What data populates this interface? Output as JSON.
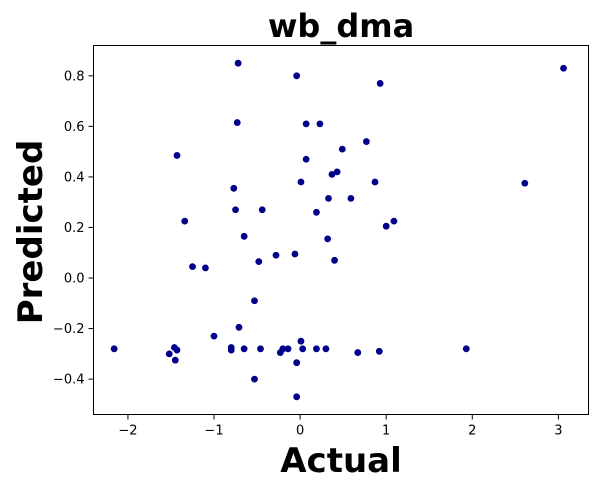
{
  "chart_data": {
    "type": "scatter",
    "title": "wb_dma",
    "xlabel": "Actual",
    "ylabel": "Predicted",
    "xlim": [
      -2.4,
      3.35
    ],
    "ylim": [
      -0.54,
      0.92
    ],
    "xticks": [
      -2,
      -1,
      0,
      1,
      2,
      3
    ],
    "xtick_labels": [
      "−2",
      "−1",
      "0",
      "1",
      "2",
      "3"
    ],
    "yticks": [
      -0.4,
      -0.2,
      0.0,
      0.2,
      0.4,
      0.6,
      0.8
    ],
    "ytick_labels": [
      "−0.4",
      "−0.2",
      "0.0",
      "0.2",
      "0.4",
      "0.6",
      "0.8"
    ],
    "grid": false,
    "marker_color": "#00008b",
    "points": [
      {
        "x": 3.06,
        "y": 0.83
      },
      {
        "x": 2.61,
        "y": 0.375
      },
      {
        "x": 1.93,
        "y": -0.28
      },
      {
        "x": 1.09,
        "y": 0.225
      },
      {
        "x": 1.0,
        "y": 0.205
      },
      {
        "x": 0.93,
        "y": 0.77
      },
      {
        "x": 0.92,
        "y": -0.29
      },
      {
        "x": 0.87,
        "y": 0.38
      },
      {
        "x": 0.77,
        "y": 0.54
      },
      {
        "x": 0.67,
        "y": -0.295
      },
      {
        "x": 0.59,
        "y": 0.315
      },
      {
        "x": 0.49,
        "y": 0.51
      },
      {
        "x": 0.43,
        "y": 0.42
      },
      {
        "x": 0.4,
        "y": 0.07
      },
      {
        "x": 0.37,
        "y": 0.41
      },
      {
        "x": 0.33,
        "y": 0.315
      },
      {
        "x": 0.32,
        "y": 0.155
      },
      {
        "x": 0.3,
        "y": -0.28
      },
      {
        "x": 0.23,
        "y": 0.61
      },
      {
        "x": 0.19,
        "y": -0.28
      },
      {
        "x": 0.19,
        "y": 0.26
      },
      {
        "x": 0.07,
        "y": 0.47
      },
      {
        "x": 0.07,
        "y": 0.61
      },
      {
        "x": 0.03,
        "y": -0.28
      },
      {
        "x": 0.01,
        "y": 0.38
      },
      {
        "x": 0.01,
        "y": -0.25
      },
      {
        "x": -0.04,
        "y": 0.8
      },
      {
        "x": -0.04,
        "y": -0.335
      },
      {
        "x": -0.04,
        "y": -0.47
      },
      {
        "x": -0.06,
        "y": 0.095
      },
      {
        "x": -0.14,
        "y": -0.28
      },
      {
        "x": -0.2,
        "y": -0.28
      },
      {
        "x": -0.23,
        "y": -0.295
      },
      {
        "x": -0.28,
        "y": 0.09
      },
      {
        "x": -0.44,
        "y": 0.27
      },
      {
        "x": -0.46,
        "y": -0.28
      },
      {
        "x": -0.48,
        "y": 0.065
      },
      {
        "x": -0.53,
        "y": -0.09
      },
      {
        "x": -0.53,
        "y": -0.4
      },
      {
        "x": -0.65,
        "y": 0.165
      },
      {
        "x": -0.65,
        "y": -0.28
      },
      {
        "x": -0.71,
        "y": -0.195
      },
      {
        "x": -0.72,
        "y": 0.85
      },
      {
        "x": -0.73,
        "y": 0.615
      },
      {
        "x": -0.75,
        "y": 0.27
      },
      {
        "x": -0.77,
        "y": 0.355
      },
      {
        "x": -0.8,
        "y": -0.275
      },
      {
        "x": -0.8,
        "y": -0.285
      },
      {
        "x": -1.0,
        "y": -0.23
      },
      {
        "x": -1.1,
        "y": 0.04
      },
      {
        "x": -1.25,
        "y": 0.045
      },
      {
        "x": -1.34,
        "y": 0.225
      },
      {
        "x": -1.43,
        "y": 0.485
      },
      {
        "x": -1.43,
        "y": -0.285
      },
      {
        "x": -1.46,
        "y": -0.275
      },
      {
        "x": -1.45,
        "y": -0.325
      },
      {
        "x": -1.52,
        "y": -0.3
      },
      {
        "x": -2.16,
        "y": -0.28
      }
    ]
  }
}
